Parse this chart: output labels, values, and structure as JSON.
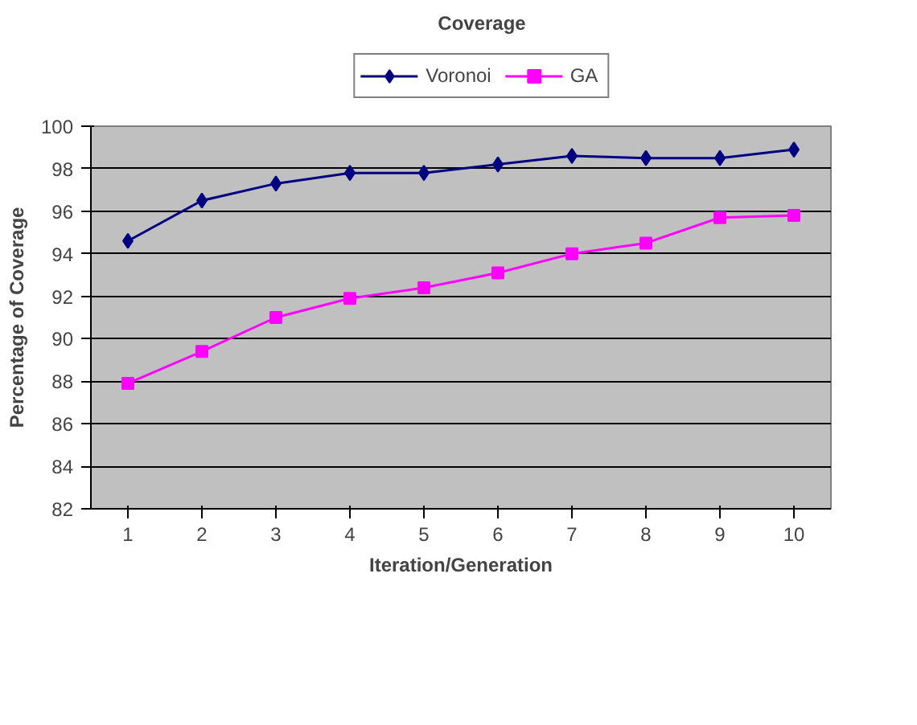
{
  "chart_data": {
    "type": "line",
    "title": "Coverage",
    "xlabel": "Iteration/Generation",
    "ylabel": "Percentage of Coverage",
    "categories": [
      "1",
      "2",
      "3",
      "4",
      "5",
      "6",
      "7",
      "8",
      "9",
      "10"
    ],
    "series": [
      {
        "name": "Voronoi",
        "color": "#000080",
        "marker": "diamond",
        "values": [
          94.6,
          96.5,
          97.3,
          97.8,
          97.8,
          98.2,
          98.6,
          98.5,
          98.5,
          98.9
        ]
      },
      {
        "name": "GA",
        "color": "#ff00ff",
        "marker": "square",
        "values": [
          87.9,
          89.4,
          91.0,
          91.9,
          92.4,
          93.1,
          94.0,
          94.5,
          95.7,
          95.8
        ]
      }
    ],
    "ylim": [
      82,
      100
    ],
    "yticks": [
      82,
      84,
      86,
      88,
      90,
      92,
      94,
      96,
      98,
      100
    ],
    "grid": "y",
    "legend": "top",
    "line_style": "solid"
  }
}
